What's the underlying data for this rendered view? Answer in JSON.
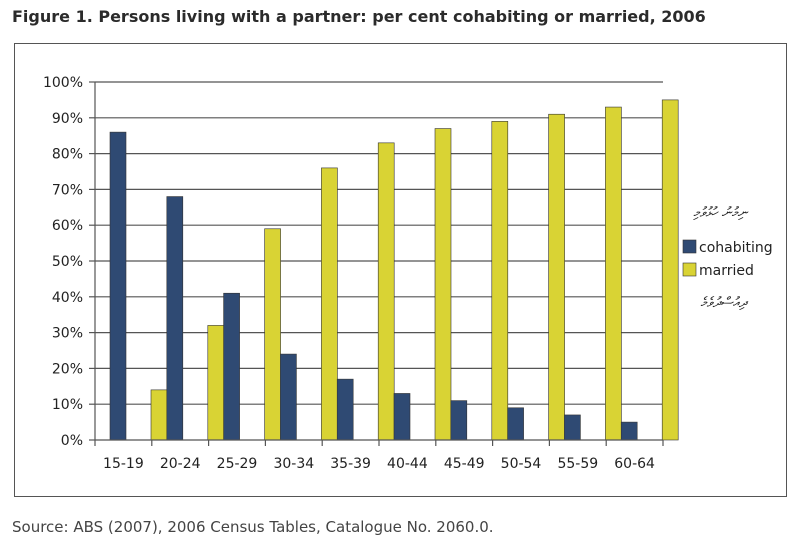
{
  "figure": {
    "title": "Figure 1. Persons living with a partner: per cent cohabiting or married, 2006",
    "source": "Source: ABS (2007), 2006 Census Tables, Catalogue No. 2060.0.",
    "overlay_text_top": "ނިމުނު ހުޅުވުމި",
    "overlay_text_bottom": "ދިއުސްދުވެމެ"
  },
  "chart_data": {
    "type": "bar",
    "title": "",
    "xlabel": "",
    "ylabel": "",
    "ylim": [
      0,
      100
    ],
    "yticks": [
      "0%",
      "10%",
      "20%",
      "30%",
      "40%",
      "50%",
      "60%",
      "70%",
      "80%",
      "90%",
      "100%"
    ],
    "grid": true,
    "legend_position": "right",
    "categories": [
      "15-19",
      "20-24",
      "25-29",
      "30-34",
      "35-39",
      "40-44",
      "45-49",
      "50-54",
      "55-59",
      "60-64"
    ],
    "series": [
      {
        "name": "cohabiting",
        "color": "#2f4a73",
        "values": [
          86,
          68,
          41,
          24,
          17,
          13,
          11,
          9,
          7,
          5
        ]
      },
      {
        "name": "married",
        "color": "#d9d334",
        "values": [
          14,
          32,
          59,
          76,
          83,
          87,
          89,
          91,
          93,
          95
        ]
      }
    ]
  }
}
